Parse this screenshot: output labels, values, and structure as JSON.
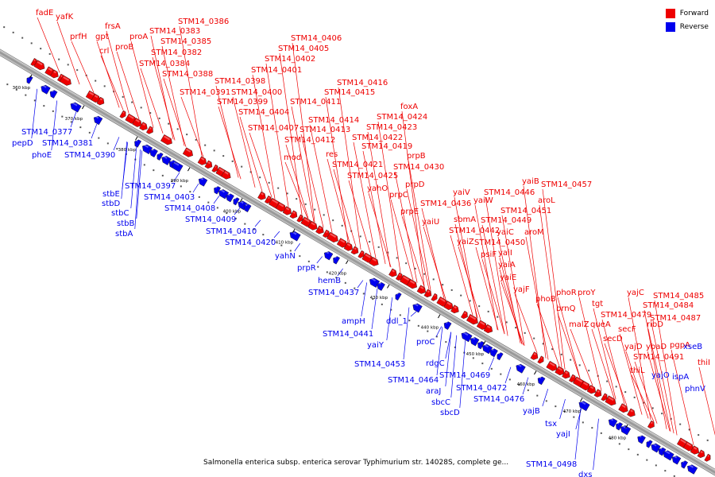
{
  "legend": [
    {
      "label": "Forward",
      "color": "#ee0000"
    },
    {
      "label": "Reverse",
      "color": "#0000ee"
    }
  ],
  "caption": "Salmonella enterica subsp. enterica serovar Typhimurium str. 14028S, complete ge...",
  "colors": {
    "forward": "#ee0000",
    "reverse": "#0000ee",
    "axis": "#9a9a9a"
  },
  "ticks": [
    "360 kbp",
    "370 kbp",
    "380 kbp",
    "390 kbp",
    "400 kbp",
    "410 kbp",
    "420 kbp",
    "430 kbp",
    "440 kbp",
    "450 kbp",
    "460 kbp",
    "470 kbp",
    "480 kbp"
  ],
  "forward_labels": [
    "fadE",
    "yafK",
    "prfH",
    "gpt",
    "frsA",
    "crl",
    "proB",
    "proA",
    "STM14_0383",
    "STM14_0386",
    "STM14_0385",
    "STM14_0382",
    "STM14_0384",
    "STM14_0388",
    "STM14_0391",
    "STM14_0398",
    "STM14_0399",
    "STM14_0400",
    "STM14_0401",
    "STM14_0402",
    "STM14_0405",
    "STM14_0406",
    "STM14_0404",
    "STM14_0407",
    "STM14_0411",
    "STM14_0415",
    "STM14_0416",
    "STM14_0414",
    "STM14_0413",
    "STM14_0412",
    "mod",
    "res",
    "STM14_0419",
    "STM14_0421",
    "STM14_0422",
    "STM14_0423",
    "STM14_0424",
    "foxA",
    "STM14_0425",
    "yahO",
    "prpB",
    "STM14_0430",
    "prpC",
    "prpD",
    "prpE",
    "STM14_0436",
    "yaiV",
    "yaiW",
    "yaiU",
    "sbmA",
    "STM14_0446",
    "yaiB",
    "STM14_0457",
    "aroL",
    "STM14_0451",
    "STM14_0449",
    "STM14_0442",
    "yaiC",
    "aroM",
    "yaiZ",
    "STM14_0450",
    "psiF",
    "yaiI",
    "yaiA",
    "yaiE",
    "yajF",
    "phoB",
    "phoR",
    "proY",
    "brnQ",
    "tgt",
    "yajC",
    "STM14_0485",
    "STM14_0484",
    "STM14_0479",
    "malZ",
    "queA",
    "secF",
    "STM14_0487",
    "ribD",
    "secD",
    "yajD",
    "ybaD",
    "pgpA",
    "STM14_0491",
    "thiL",
    "thiI"
  ],
  "reverse_labels": [
    "STM14_0377",
    "pepD",
    "STM14_0381",
    "phoE",
    "STM14_0390",
    "stbE",
    "STM14_0397",
    "stbD",
    "STM14_0403",
    "stbC",
    "STM14_0408",
    "stbB",
    "stbA",
    "STM14_0409",
    "STM14_0410",
    "STM14_0420",
    "yahN",
    "prpR",
    "hemB",
    "STM14_0437",
    "ampH",
    "STM14_0441",
    "ddl_1",
    "yaiY",
    "proC",
    "STM14_0453",
    "rdgC",
    "STM14_0464",
    "STM14_0469",
    "araJ",
    "STM14_0472",
    "sbcC",
    "sbcD",
    "STM14_0476",
    "yajB",
    "tsx",
    "yajI",
    "STM14_0498",
    "dxs",
    "yajO",
    "ispA",
    "xseB",
    "phnV"
  ]
}
